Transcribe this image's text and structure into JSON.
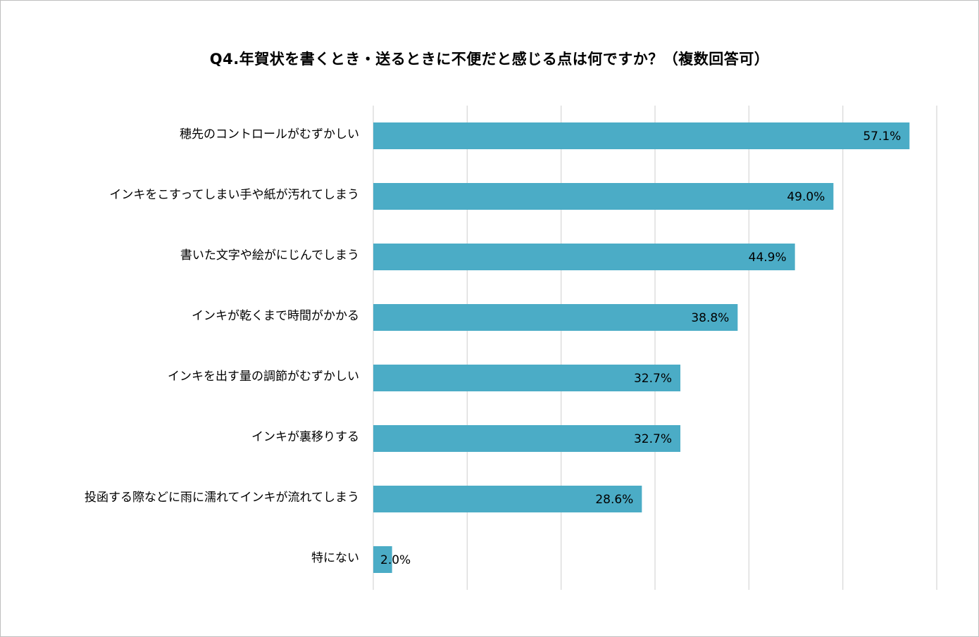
{
  "chart_data": {
    "type": "bar",
    "orientation": "horizontal",
    "title": "Q4.年賀状を書くとき・送るときに不便だと感じる点は何ですか？（複数回答可）",
    "categories": [
      "穂先のコントロールがむずかしい",
      "インキをこすってしまい手や紙が汚れてしまう",
      "書いた文字や絵がにじんでしまう",
      "インキが乾くまで時間がかかる",
      "インキを出す量の調節がむずかしい",
      "インキが裏移りする",
      "投函する際などに雨に濡れてインキが流れてしまう",
      "特にない"
    ],
    "values": [
      57.1,
      49.0,
      44.9,
      38.8,
      32.7,
      32.7,
      28.6,
      2.0
    ],
    "value_labels": [
      "57.1%",
      "49.0%",
      "44.9%",
      "38.8%",
      "32.7%",
      "32.7%",
      "28.6%",
      "2.0%"
    ],
    "xlim": [
      0,
      60
    ],
    "grid": true,
    "bar_color": "#4bacc6",
    "grid_color": "#d9d9d9"
  }
}
